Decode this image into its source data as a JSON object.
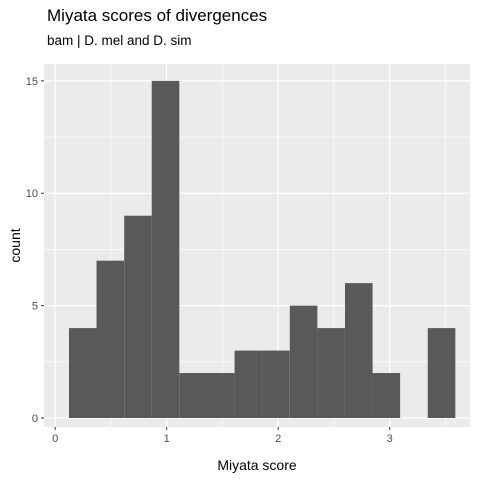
{
  "chart_data": {
    "type": "bar",
    "title": "Miyata scores of divergences",
    "subtitle": "bam | D. mel and D. sim",
    "xlabel": "Miyata score",
    "ylabel": "count",
    "xlim": [
      -0.1,
      3.72
    ],
    "ylim": [
      -0.4,
      15.75
    ],
    "x_ticks": [
      0,
      1,
      2,
      3
    ],
    "y_ticks": [
      0,
      5,
      10,
      15
    ],
    "bin_width": 0.2475,
    "bins": [
      {
        "x0": 0.124,
        "count": 4
      },
      {
        "x0": 0.371,
        "count": 7
      },
      {
        "x0": 0.619,
        "count": 9
      },
      {
        "x0": 0.866,
        "count": 15
      },
      {
        "x0": 1.114,
        "count": 2
      },
      {
        "x0": 1.361,
        "count": 2
      },
      {
        "x0": 1.609,
        "count": 3
      },
      {
        "x0": 1.856,
        "count": 3
      },
      {
        "x0": 2.104,
        "count": 5
      },
      {
        "x0": 2.351,
        "count": 4
      },
      {
        "x0": 2.599,
        "count": 6
      },
      {
        "x0": 2.846,
        "count": 2
      },
      {
        "x0": 3.094,
        "count": 0
      },
      {
        "x0": 3.341,
        "count": 4
      }
    ],
    "grid": true,
    "colors": {
      "panel": "#ebebeb",
      "grid": "#ffffff",
      "bar": "#595959"
    }
  }
}
